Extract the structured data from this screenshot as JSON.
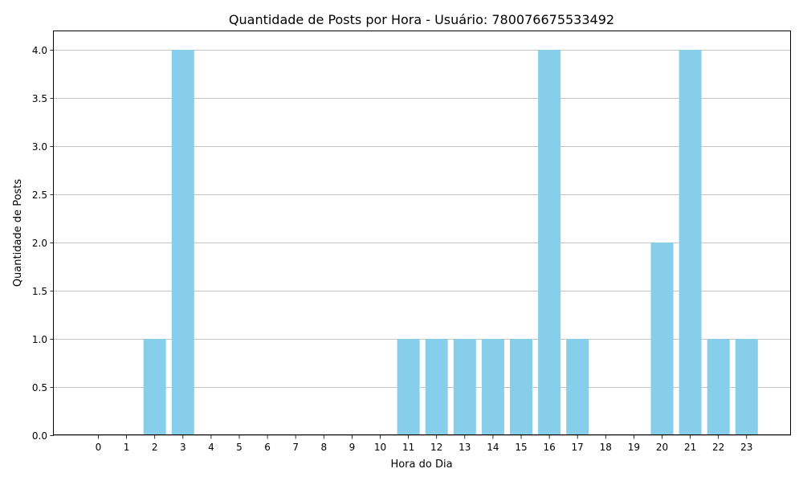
{
  "chart_data": {
    "type": "bar",
    "title": "Quantidade de Posts por Hora - Usuário: 780076675533492",
    "xlabel": "Hora do Dia",
    "ylabel": "Quantidade de Posts",
    "categories": [
      "0",
      "1",
      "2",
      "3",
      "4",
      "5",
      "6",
      "7",
      "8",
      "9",
      "10",
      "11",
      "12",
      "13",
      "14",
      "15",
      "16",
      "17",
      "18",
      "19",
      "20",
      "21",
      "22",
      "23"
    ],
    "values": [
      0,
      0,
      1,
      4,
      0,
      0,
      0,
      0,
      0,
      0,
      0,
      1,
      1,
      1,
      1,
      1,
      4,
      1,
      0,
      0,
      2,
      4,
      1,
      1
    ],
    "ylim": [
      0,
      4.2
    ],
    "yticks": [
      "0.0",
      "0.5",
      "1.0",
      "1.5",
      "2.0",
      "2.5",
      "3.0",
      "3.5",
      "4.0"
    ],
    "grid": "horizontal",
    "bar_color": "#87ceeb"
  }
}
